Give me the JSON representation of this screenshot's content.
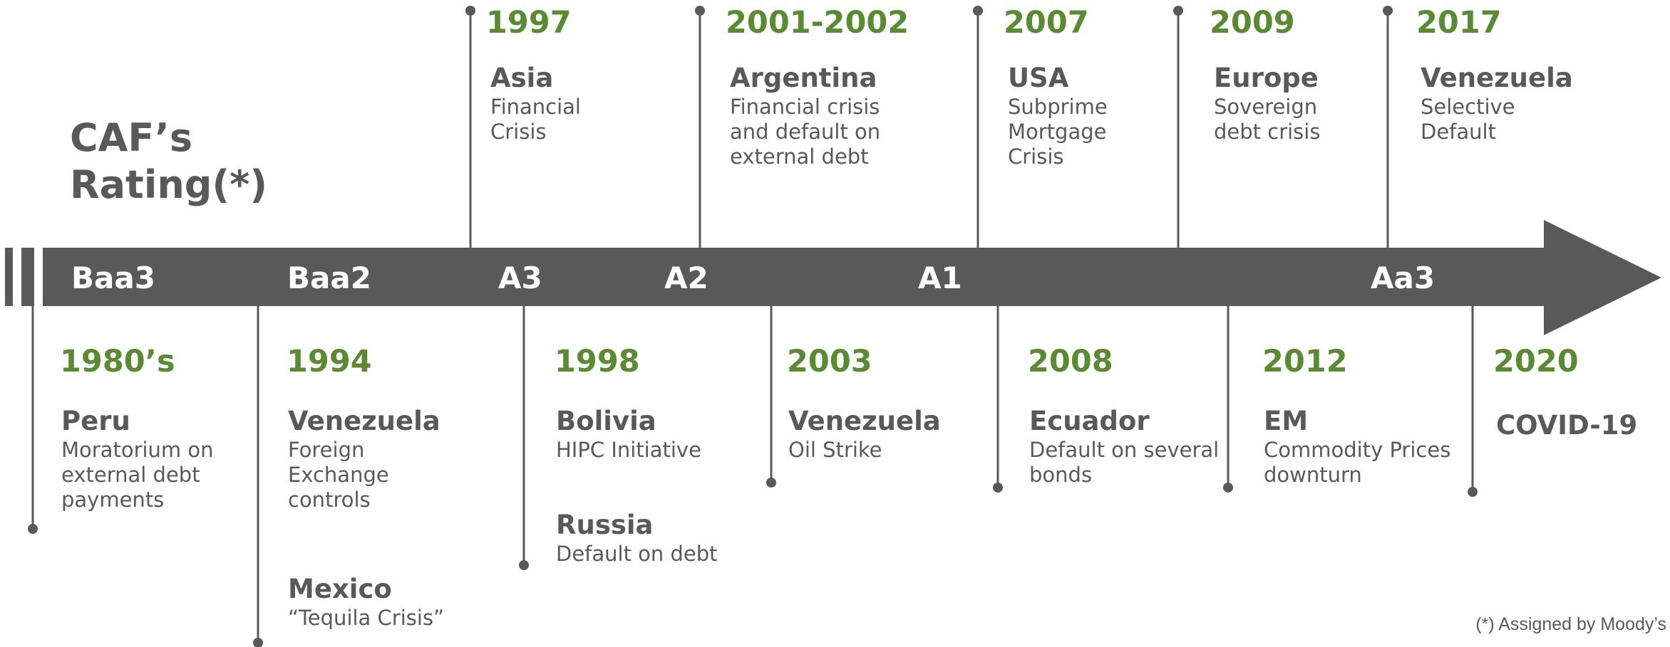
{
  "title_lines": [
    "CAF’s",
    "Rating(*)"
  ],
  "ratings": [
    "Baa3",
    "Baa2",
    "A3",
    "A2",
    "A1",
    "Aa3"
  ],
  "top_events": [
    {
      "year": "1997",
      "entries": [
        {
          "country": "Asia",
          "lines": [
            "Financial",
            "Crisis"
          ]
        }
      ]
    },
    {
      "year": "2001-2002",
      "entries": [
        {
          "country": "Argentina",
          "lines": [
            "Financial crisis",
            "and default on",
            "external debt"
          ]
        }
      ]
    },
    {
      "year": "2007",
      "entries": [
        {
          "country": "USA",
          "lines": [
            "Subprime",
            "Mortgage",
            "Crisis"
          ]
        }
      ]
    },
    {
      "year": "2009",
      "entries": [
        {
          "country": "Europe",
          "lines": [
            "Sovereign",
            "debt crisis"
          ]
        }
      ]
    },
    {
      "year": "2017",
      "entries": [
        {
          "country": "Venezuela",
          "lines": [
            "Selective",
            "Default"
          ]
        }
      ]
    }
  ],
  "bottom_events": [
    {
      "year": "1980’s",
      "entries": [
        {
          "country": "Peru",
          "lines": [
            "Moratorium on",
            "external debt",
            "payments"
          ]
        }
      ]
    },
    {
      "year": "1994",
      "entries": [
        {
          "country": "Venezuela",
          "lines": [
            "Foreign",
            "Exchange",
            "controls"
          ]
        },
        {
          "country": "Mexico",
          "lines": [
            "“Tequila Crisis”"
          ]
        }
      ]
    },
    {
      "year": "1998",
      "entries": [
        {
          "country": "Bolivia",
          "lines": [
            "HIPC Initiative"
          ]
        },
        {
          "country": "Russia",
          "lines": [
            "Default on debt"
          ]
        }
      ]
    },
    {
      "year": "2003",
      "entries": [
        {
          "country": "Venezuela",
          "lines": [
            "Oil Strike"
          ]
        }
      ]
    },
    {
      "year": "2008",
      "entries": [
        {
          "country": "Ecuador",
          "lines": [
            "Default on several",
            "bonds"
          ]
        }
      ]
    },
    {
      "year": "2012",
      "entries": [
        {
          "country": "EM",
          "lines": [
            "Commodity Prices",
            "downturn"
          ]
        }
      ]
    },
    {
      "year": "2020",
      "entries": [
        {
          "country": "COVID-19",
          "lines": []
        }
      ]
    }
  ],
  "footnote": "(*) Assigned by Moody’s"
}
